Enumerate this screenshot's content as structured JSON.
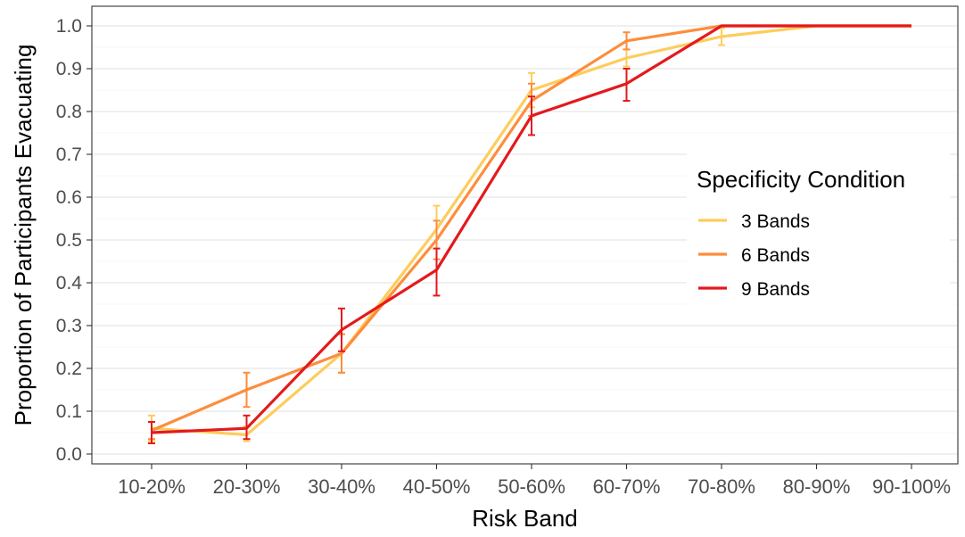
{
  "chart_data": {
    "type": "line",
    "xlabel": "Risk Band",
    "ylabel": "Proportion of Participants Evacuating",
    "categories": [
      "10-20%",
      "20-30%",
      "30-40%",
      "40-50%",
      "50-60%",
      "60-70%",
      "70-80%",
      "80-90%",
      "90-100%"
    ],
    "ylim": [
      0.0,
      1.0
    ],
    "yticks": [
      "0.0",
      "0.1",
      "0.2",
      "0.3",
      "0.4",
      "0.5",
      "0.6",
      "0.7",
      "0.8",
      "0.9",
      "1.0"
    ],
    "grid": "horizontal",
    "legend": {
      "title": "Specificity Condition",
      "placement": "right"
    },
    "series": [
      {
        "name": "3 Bands",
        "color": "#fecc5c",
        "values": [
          0.06,
          0.045,
          0.235,
          0.525,
          0.85,
          0.925,
          0.975,
          1.0,
          1.0
        ],
        "error_low": [
          0.03,
          0.03,
          0.19,
          0.48,
          0.81,
          0.905,
          0.955,
          1.0,
          1.0
        ],
        "error_high": [
          0.09,
          0.065,
          0.28,
          0.58,
          0.89,
          0.945,
          0.995,
          1.0,
          1.0
        ]
      },
      {
        "name": "6 Bands",
        "color": "#fd8d3c",
        "values": [
          0.055,
          0.15,
          0.235,
          0.5,
          0.825,
          0.965,
          1.0,
          1.0,
          1.0
        ],
        "error_low": [
          0.035,
          0.11,
          0.19,
          0.455,
          0.79,
          0.945,
          1.0,
          1.0,
          1.0
        ],
        "error_high": [
          0.075,
          0.19,
          0.28,
          0.545,
          0.865,
          0.985,
          1.0,
          1.0,
          1.0
        ]
      },
      {
        "name": "9 Bands",
        "color": "#e31a1c",
        "values": [
          0.05,
          0.06,
          0.29,
          0.43,
          0.79,
          0.865,
          1.0,
          1.0,
          1.0
        ],
        "error_low": [
          0.025,
          0.035,
          0.24,
          0.37,
          0.745,
          0.825,
          1.0,
          1.0,
          1.0
        ],
        "error_high": [
          0.075,
          0.09,
          0.34,
          0.48,
          0.835,
          0.9,
          1.0,
          1.0,
          1.0
        ]
      }
    ]
  }
}
